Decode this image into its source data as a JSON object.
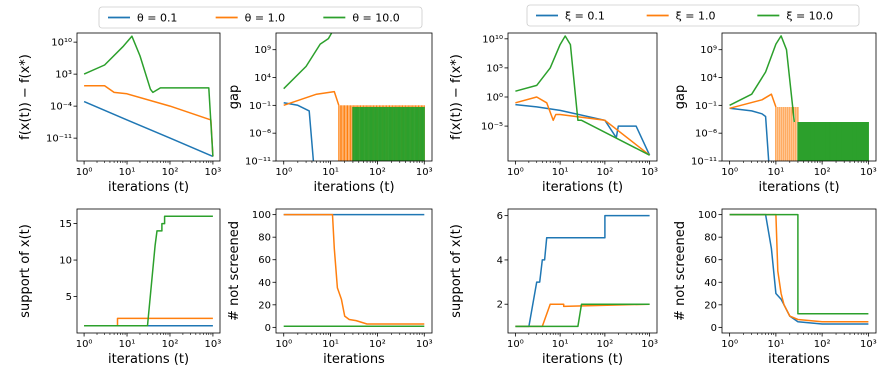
{
  "legends": [
    {
      "items": [
        {
          "label": "θ = 0.1",
          "color": "#1f77b4"
        },
        {
          "label": "θ = 1.0",
          "color": "#ff7f0e"
        },
        {
          "label": "θ = 10.0",
          "color": "#2ca02c"
        }
      ]
    },
    {
      "items": [
        {
          "label": "ξ = 0.1",
          "color": "#1f77b4"
        },
        {
          "label": "ξ = 1.0",
          "color": "#ff7f0e"
        },
        {
          "label": "ξ = 10.0",
          "color": "#2ca02c"
        }
      ]
    }
  ],
  "chart_data": [
    {
      "type": "line",
      "xlabel": "iterations (t)",
      "ylabel": "f(x(t)) − f(x*)",
      "xscale": "log",
      "yscale": "log",
      "xlim": [
        1,
        1000
      ],
      "ylim": [
        1e-16,
        1000000000000.0
      ],
      "xticks": [
        "10⁰",
        "10¹",
        "10²",
        "10³"
      ],
      "yticks": [
        {
          "v": 10000000000.0,
          "l": "10¹⁰"
        },
        {
          "v": 1000.0,
          "l": "10³"
        },
        {
          "v": 0.0001,
          "l": "10⁻⁴"
        },
        {
          "v": 1e-11,
          "l": "10⁻¹¹"
        }
      ],
      "series": [
        {
          "name": "θ = 0.1",
          "color": "#1f77b4",
          "x": [
            1,
            10,
            100,
            1000
          ],
          "y": [
            0.001,
            1e-07,
            1e-11,
            1e-15
          ]
        },
        {
          "name": "θ = 1.0",
          "color": "#ff7f0e",
          "x": [
            1,
            3,
            5,
            10,
            100,
            900,
            1000
          ],
          "y": [
            3,
            3,
            0.1,
            0.05,
            0.0001,
            1e-07,
            1e-15
          ]
        },
        {
          "name": "θ = 10.0",
          "color": "#2ca02c",
          "x": [
            1,
            3,
            8,
            13,
            20,
            35,
            40,
            60,
            100,
            800,
            1000
          ],
          "y": [
            1000,
            100000.0,
            1000000000.0,
            200000000000.0,
            10000000.0,
            0.5,
            0.1,
            1,
            1,
            1,
            1e-15
          ]
        }
      ]
    },
    {
      "type": "line",
      "xlabel": "iterations (t)",
      "ylabel": "gap",
      "xscale": "log",
      "yscale": "log",
      "xlim": [
        1,
        1000
      ],
      "ylim": [
        1e-11,
        1000000000000.0
      ],
      "xticks": [
        "10⁰",
        "10¹",
        "10²",
        "10³"
      ],
      "yticks": [
        {
          "v": 1000000000.0,
          "l": "10⁹"
        },
        {
          "v": 10000.0,
          "l": "10⁴"
        },
        {
          "v": 0.1,
          "l": "10⁻¹"
        },
        {
          "v": 1e-06,
          "l": "10⁻⁶"
        },
        {
          "v": 1e-11,
          "l": "10⁻¹¹"
        }
      ],
      "series": [
        {
          "name": "θ = 0.1",
          "color": "#1f77b4",
          "x": [
            1,
            2,
            3.5,
            4.3
          ],
          "y": [
            0.3,
            0.1,
            0.01,
            1e-12
          ]
        },
        {
          "name": "θ = 1.0",
          "color": "#ff7f0e",
          "x": [
            1,
            5,
            12,
            15
          ],
          "y": [
            0.1,
            10,
            30,
            0.1
          ],
          "spikes": {
            "from": 15,
            "to": 1000,
            "top": 0.1,
            "count": 60
          }
        },
        {
          "name": "θ = 10.0",
          "color": "#2ca02c",
          "x": [
            1,
            3,
            6,
            9,
            10.5
          ],
          "y": [
            100,
            1000000.0,
            10000000000.0,
            100000000000.0,
            10000000000000.0
          ],
          "spikes": {
            "from": 30,
            "to": 1000,
            "top": 0.05,
            "count": 80
          }
        }
      ]
    },
    {
      "type": "line",
      "xlabel": "iterations (t)",
      "ylabel": "support of x(t)",
      "xscale": "log",
      "yscale": "linear",
      "xlim": [
        1,
        1000
      ],
      "ylim": [
        0,
        17
      ],
      "xticks": [
        "10⁰",
        "10¹",
        "10²",
        "10³"
      ],
      "yticks": [
        {
          "v": 5,
          "l": "5"
        },
        {
          "v": 10,
          "l": "10"
        },
        {
          "v": 15,
          "l": "15"
        }
      ],
      "series": [
        {
          "name": "θ = 0.1",
          "color": "#1f77b4",
          "x": [
            1,
            1000
          ],
          "y": [
            1,
            1
          ]
        },
        {
          "name": "θ = 1.0",
          "color": "#ff7f0e",
          "x": [
            1,
            6,
            6,
            1000
          ],
          "y": [
            1,
            1,
            2,
            2
          ]
        },
        {
          "name": "θ = 10.0",
          "color": "#2ca02c",
          "x": [
            1,
            30,
            45,
            50,
            50,
            65,
            65,
            75,
            75,
            1000
          ],
          "y": [
            1,
            1,
            12,
            14,
            14,
            14,
            15,
            15,
            16,
            16
          ]
        }
      ]
    },
    {
      "type": "line",
      "xlabel": "iterations",
      "ylabel": "# not screened",
      "xscale": "log",
      "yscale": "linear",
      "xlim": [
        1,
        1000
      ],
      "ylim": [
        -5,
        105
      ],
      "xticks": [
        "10⁰",
        "10¹",
        "10²",
        "10³"
      ],
      "yticks": [
        {
          "v": 0,
          "l": "0"
        },
        {
          "v": 20,
          "l": "20"
        },
        {
          "v": 40,
          "l": "40"
        },
        {
          "v": 60,
          "l": "60"
        },
        {
          "v": 80,
          "l": "80"
        },
        {
          "v": 100,
          "l": "100"
        }
      ],
      "series": [
        {
          "name": "θ = 0.1",
          "color": "#1f77b4",
          "x": [
            1,
            1000
          ],
          "y": [
            100,
            100
          ]
        },
        {
          "name": "θ = 1.0",
          "color": "#ff7f0e",
          "x": [
            1,
            11,
            12,
            14,
            17,
            20,
            25,
            35,
            60,
            1000
          ],
          "y": [
            100,
            100,
            70,
            35,
            25,
            10,
            7,
            6,
            3,
            3
          ]
        },
        {
          "name": "θ = 10.0",
          "color": "#2ca02c",
          "x": [
            1,
            1000
          ],
          "y": [
            1,
            1
          ]
        }
      ]
    },
    {
      "type": "line",
      "xlabel": "iterations (t)",
      "ylabel": "f(x(t)) − f(x*)",
      "xscale": "log",
      "yscale": "log",
      "xlim": [
        1,
        1000
      ],
      "ylim": [
        1e-11,
        100000000000.0
      ],
      "xticks": [
        "10⁰",
        "10¹",
        "10²",
        "10³"
      ],
      "yticks": [
        {
          "v": 10000000000.0,
          "l": "10¹⁰"
        },
        {
          "v": 100000.0,
          "l": "10⁵"
        },
        {
          "v": 1,
          "l": "10⁰"
        },
        {
          "v": 1e-05,
          "l": "10⁻⁵"
        }
      ],
      "series": [
        {
          "name": "ξ = 0.1",
          "color": "#1f77b4",
          "x": [
            1,
            3,
            10,
            100,
            180,
            200,
            220,
            500,
            1000
          ],
          "y": [
            0.05,
            0.02,
            0.005,
            0.0001,
            1e-07,
            1e-05,
            1e-05,
            1e-05,
            1e-10
          ]
        },
        {
          "name": "ξ = 1.0",
          "color": "#ff7f0e",
          "x": [
            1,
            3,
            5,
            7,
            8,
            10,
            100,
            1000
          ],
          "y": [
            0.1,
            1,
            0.1,
            0.0001,
            0.001,
            0.001,
            0.0001,
            1e-10
          ]
        },
        {
          "name": "ξ = 10.0",
          "color": "#2ca02c",
          "x": [
            1,
            3,
            6,
            10,
            13,
            17,
            25,
            30,
            1000
          ],
          "y": [
            10,
            100,
            100000.0,
            1000000000.0,
            30000000000.0,
            1000000000.0,
            0.0001,
            0.0001,
            1e-10
          ]
        }
      ]
    },
    {
      "type": "line",
      "xlabel": "iterations (t)",
      "ylabel": "gap",
      "xscale": "log",
      "yscale": "log",
      "xlim": [
        1,
        1000
      ],
      "ylim": [
        1e-11,
        1000000000000.0
      ],
      "xticks": [
        "10⁰",
        "10¹",
        "10²",
        "10³"
      ],
      "yticks": [
        {
          "v": 1000000000.0,
          "l": "10⁹"
        },
        {
          "v": 10000.0,
          "l": "10⁴"
        },
        {
          "v": 0.1,
          "l": "10⁻¹"
        },
        {
          "v": 1e-06,
          "l": "10⁻⁶"
        },
        {
          "v": 1e-11,
          "l": "10⁻¹¹"
        }
      ],
      "series": [
        {
          "name": "ξ = 0.1",
          "color": "#1f77b4",
          "x": [
            1,
            3,
            5,
            6,
            7
          ],
          "y": [
            0.03,
            0.01,
            0.003,
            0.001,
            1e-12
          ]
        },
        {
          "name": "ξ = 1.0",
          "color": "#ff7f0e",
          "x": [
            1,
            5,
            8,
            10
          ],
          "y": [
            0.03,
            1,
            10,
            0.05
          ],
          "spikes": {
            "from": 10,
            "to": 30,
            "top": 0.05,
            "count": 12
          }
        },
        {
          "name": "ξ = 10.0",
          "color": "#2ca02c",
          "x": [
            1,
            3,
            6,
            10,
            13,
            17,
            25
          ],
          "y": [
            0.1,
            10,
            100000.0,
            10000000000.0,
            300000000000.0,
            1000000000.0,
            0.0001
          ],
          "spikes": {
            "from": 30,
            "to": 1000,
            "top": 0.0001,
            "count": 110
          }
        }
      ]
    },
    {
      "type": "line",
      "xlabel": "iterations (t)",
      "ylabel": "support of x(t)",
      "xscale": "log",
      "yscale": "linear",
      "xlim": [
        1,
        1000
      ],
      "ylim": [
        0.7,
        6.3
      ],
      "xticks": [
        "10⁰",
        "10¹",
        "10²",
        "10³"
      ],
      "yticks": [
        {
          "v": 2,
          "l": "2"
        },
        {
          "v": 4,
          "l": "4"
        },
        {
          "v": 6,
          "l": "6"
        }
      ],
      "series": [
        {
          "name": "ξ = 0.1",
          "color": "#1f77b4",
          "x": [
            1,
            2,
            3,
            3.5,
            4,
            4.5,
            5,
            6,
            100,
            100,
            1000
          ],
          "y": [
            1,
            1,
            3,
            3,
            4,
            4,
            5,
            5,
            5,
            6,
            6
          ]
        },
        {
          "name": "ξ = 1.0",
          "color": "#ff7f0e",
          "x": [
            1,
            4,
            6,
            12,
            12,
            1000
          ],
          "y": [
            1,
            1,
            2,
            2,
            1.9,
            2
          ]
        },
        {
          "name": "ξ = 10.0",
          "color": "#2ca02c",
          "x": [
            1,
            25,
            30,
            1000
          ],
          "y": [
            1,
            1,
            2,
            2
          ]
        }
      ]
    },
    {
      "type": "line",
      "xlabel": "iterations",
      "ylabel": "# not screened",
      "xscale": "log",
      "yscale": "linear",
      "xlim": [
        1,
        1000
      ],
      "ylim": [
        -5,
        105
      ],
      "xticks": [
        "10⁰",
        "10¹",
        "10²",
        "10³"
      ],
      "yticks": [
        {
          "v": 0,
          "l": "0"
        },
        {
          "v": 20,
          "l": "20"
        },
        {
          "v": 40,
          "l": "40"
        },
        {
          "v": 60,
          "l": "60"
        },
        {
          "v": 80,
          "l": "80"
        },
        {
          "v": 100,
          "l": "100"
        }
      ],
      "series": [
        {
          "name": "ξ = 0.1",
          "color": "#1f77b4",
          "x": [
            1,
            6,
            8,
            10,
            13,
            15,
            20,
            30,
            100,
            1000
          ],
          "y": [
            100,
            100,
            70,
            30,
            25,
            20,
            10,
            5,
            3,
            3
          ]
        },
        {
          "name": "ξ = 1.0",
          "color": "#ff7f0e",
          "x": [
            1,
            10,
            11,
            13,
            15,
            20,
            30,
            100,
            1000
          ],
          "y": [
            100,
            100,
            50,
            30,
            20,
            10,
            7,
            5,
            5
          ]
        },
        {
          "name": "ξ = 10.0",
          "color": "#2ca02c",
          "x": [
            1,
            30,
            30,
            1000
          ],
          "y": [
            100,
            100,
            12,
            12
          ]
        }
      ]
    }
  ]
}
